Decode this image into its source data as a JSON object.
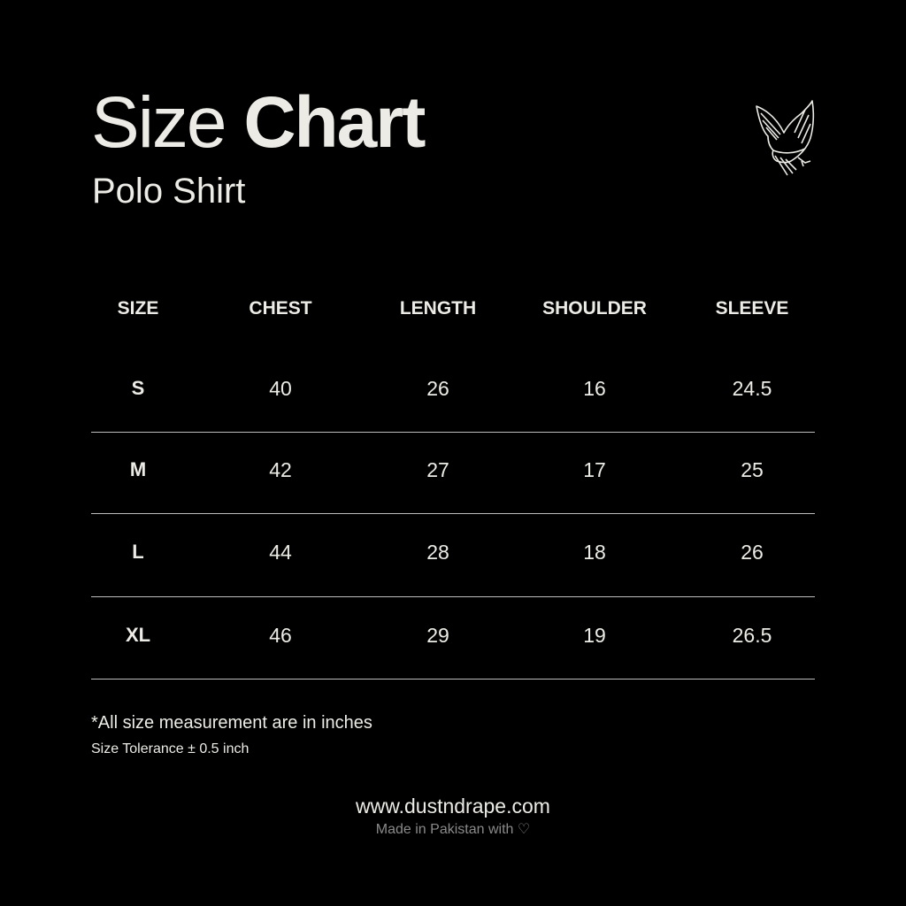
{
  "title": {
    "light": "Size",
    "bold": "Chart"
  },
  "subtitle": "Polo Shirt",
  "logo": {
    "icon": "eagle-icon"
  },
  "table": {
    "headers": [
      "SIZE",
      "CHEST",
      "LENGTH",
      "SHOULDER",
      "SLEEVE"
    ],
    "rows": [
      [
        "S",
        "40",
        "26",
        "16",
        "24.5"
      ],
      [
        "M",
        "42",
        "27",
        "17",
        "25"
      ],
      [
        "L",
        "44",
        "28",
        "18",
        "26"
      ],
      [
        "XL",
        "46",
        "29",
        "19",
        "26.5"
      ]
    ]
  },
  "notes": {
    "units": "*All size measurement are in inches",
    "tolerance": "Size Tolerance ± 0.5 inch"
  },
  "footer": {
    "website": "www.dustndrape.com",
    "made_in": "Made in Pakistan with ♡"
  },
  "colors": {
    "background": "#000000",
    "text": "#ecebe5",
    "muted": "#8a8a8a"
  }
}
